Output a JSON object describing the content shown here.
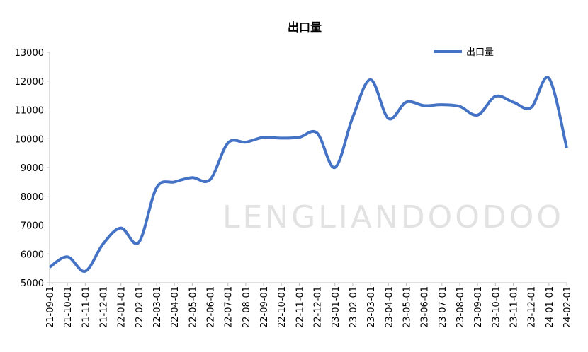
{
  "chart_data": {
    "type": "line",
    "title": "出口量",
    "categories": [
      "21-09-01",
      "21-10-01",
      "21-11-01",
      "21-12-01",
      "22-01-01",
      "22-02-01",
      "22-03-01",
      "22-04-01",
      "22-05-01",
      "22-06-01",
      "22-07-01",
      "22-08-01",
      "22-09-01",
      "22-10-01",
      "22-11-01",
      "22-12-01",
      "23-01-01",
      "23-02-01",
      "23-03-01",
      "23-04-01",
      "23-05-01",
      "23-06-01",
      "23-07-01",
      "23-08-01",
      "23-09-01",
      "23-10-01",
      "23-11-01",
      "23-12-01",
      "24-01-01",
      "24-02-01"
    ],
    "series": [
      {
        "name": "出口量",
        "color": "#4472c4",
        "values": [
          5540,
          5900,
          5400,
          6350,
          6900,
          6400,
          8300,
          8500,
          8650,
          8580,
          9850,
          9880,
          10050,
          10020,
          10050,
          10200,
          9000,
          10750,
          12050,
          10700,
          11270,
          11150,
          11180,
          11120,
          10820,
          11470,
          11270,
          11080,
          12100,
          9680
        ]
      }
    ],
    "ylim": [
      5000,
      13000
    ],
    "yticks": [
      5000,
      6000,
      7000,
      8000,
      9000,
      10000,
      11000,
      12000,
      13000
    ],
    "grid": false,
    "legend": "top-right",
    "smooth": true,
    "watermark": "LENGLIANDOODOO"
  }
}
